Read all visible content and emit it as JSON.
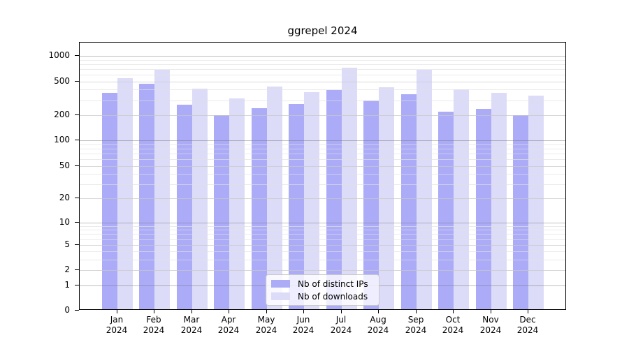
{
  "chart_data": {
    "type": "bar",
    "title": "ggrepel 2024",
    "categories": [
      "Jan",
      "Feb",
      "Mar",
      "Apr",
      "May",
      "Jun",
      "Jul",
      "Aug",
      "Sep",
      "Oct",
      "Nov",
      "Dec"
    ],
    "x_year": "2024",
    "series": [
      {
        "name": "Nb of distinct IPs",
        "color": "#ababf8",
        "values": [
          369,
          467,
          266,
          199,
          240,
          269,
          395,
          296,
          356,
          220,
          237,
          199
        ]
      },
      {
        "name": "Nb of downloads",
        "color": "#dcdcf8",
        "values": [
          549,
          683,
          411,
          315,
          433,
          376,
          725,
          427,
          686,
          401,
          365,
          340
        ]
      }
    ],
    "yscale": "log1p",
    "y_ticks": [
      0,
      1,
      2,
      5,
      10,
      20,
      50,
      100,
      200,
      500,
      1000
    ],
    "ylim": [
      0,
      1430
    ],
    "grid": true,
    "legend_position": "lower center"
  }
}
